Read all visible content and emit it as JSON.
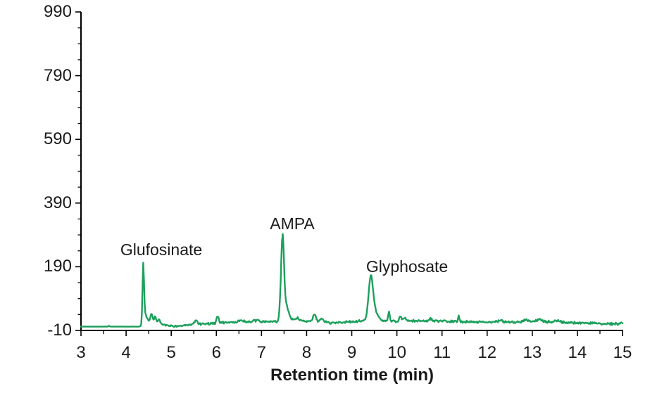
{
  "chart_data": {
    "type": "line",
    "title": "",
    "xlabel": "Retention time (min)",
    "ylabel": "",
    "xlim": [
      3,
      15
    ],
    "ylim": [
      -10,
      990
    ],
    "x_major_ticks": [
      3,
      4,
      5,
      6,
      7,
      8,
      9,
      10,
      11,
      12,
      13,
      14,
      15
    ],
    "x_minor_step": 0.5,
    "y_major_ticks": [
      990,
      790,
      590,
      390,
      190,
      -10
    ],
    "y_minor_step": 50,
    "grid": false,
    "legend": false,
    "line_color": "#1CA05C",
    "axis_color": "#000000",
    "text_color": "#1a1a1a",
    "background_color": "#ffffff",
    "peaks": [
      {
        "label": "Glufosinate",
        "rt_min": 4.4,
        "apex_response": 200
      },
      {
        "label": "AMPA",
        "rt_min": 7.5,
        "apex_response": 292
      },
      {
        "label": "Glyphosate",
        "rt_min": 9.4,
        "apex_response": 162
      }
    ],
    "trace": {
      "step_min": 0.015,
      "seed": 42,
      "baseline_drift": [
        [
          3.0,
          2
        ],
        [
          4.3,
          2
        ],
        [
          4.45,
          12
        ],
        [
          4.55,
          16
        ],
        [
          4.8,
          10
        ],
        [
          5.0,
          4
        ],
        [
          5.2,
          3
        ],
        [
          5.45,
          8
        ],
        [
          5.6,
          10
        ],
        [
          5.9,
          12
        ],
        [
          6.15,
          15
        ],
        [
          6.5,
          16
        ],
        [
          7.0,
          17
        ],
        [
          7.35,
          18
        ],
        [
          7.62,
          26
        ],
        [
          7.85,
          20
        ],
        [
          8.2,
          20
        ],
        [
          8.55,
          14
        ],
        [
          9.0,
          17
        ],
        [
          9.25,
          20
        ],
        [
          9.6,
          24
        ],
        [
          9.75,
          20
        ],
        [
          10.05,
          18
        ],
        [
          10.3,
          20
        ],
        [
          10.7,
          20
        ],
        [
          11.2,
          18
        ],
        [
          11.8,
          17
        ],
        [
          12.4,
          16
        ],
        [
          13.0,
          18
        ],
        [
          13.6,
          16
        ],
        [
          14.2,
          13
        ],
        [
          14.7,
          11
        ],
        [
          14.9,
          10
        ],
        [
          15.0,
          14
        ]
      ],
      "noise_amp": [
        [
          3.0,
          0.3
        ],
        [
          4.28,
          0.3
        ],
        [
          4.32,
          3
        ],
        [
          4.6,
          5
        ],
        [
          5.0,
          3
        ],
        [
          5.5,
          4
        ],
        [
          6.2,
          5
        ],
        [
          7.3,
          4.5
        ],
        [
          7.45,
          3
        ],
        [
          7.6,
          4.5
        ],
        [
          9.3,
          4
        ],
        [
          9.45,
          4
        ],
        [
          15.0,
          4.5
        ]
      ],
      "gaussians": [
        [
          3.62,
          3,
          0.01
        ],
        [
          4.38,
          185,
          0.017
        ],
        [
          4.43,
          28,
          0.035
        ],
        [
          4.56,
          26,
          0.022
        ],
        [
          4.635,
          18,
          0.025
        ],
        [
          4.72,
          12,
          0.03
        ],
        [
          5.55,
          12,
          0.035
        ],
        [
          6.03,
          22,
          0.022
        ],
        [
          6.55,
          6,
          0.05
        ],
        [
          6.9,
          5,
          0.05
        ],
        [
          7.43,
          50,
          0.028
        ],
        [
          7.47,
          235,
          0.03
        ],
        [
          7.54,
          45,
          0.05
        ],
        [
          7.8,
          8,
          0.03
        ],
        [
          8.175,
          20,
          0.03
        ],
        [
          8.34,
          9,
          0.03
        ],
        [
          9.42,
          123,
          0.048
        ],
        [
          9.49,
          28,
          0.07
        ],
        [
          9.825,
          30,
          0.016
        ],
        [
          10.08,
          15,
          0.028
        ],
        [
          10.17,
          10,
          0.025
        ],
        [
          10.75,
          7,
          0.03
        ],
        [
          11.37,
          18,
          0.013
        ],
        [
          12.3,
          5,
          0.05
        ],
        [
          12.85,
          6,
          0.05
        ],
        [
          13.15,
          7,
          0.05
        ],
        [
          13.55,
          5,
          0.05
        ]
      ]
    }
  }
}
